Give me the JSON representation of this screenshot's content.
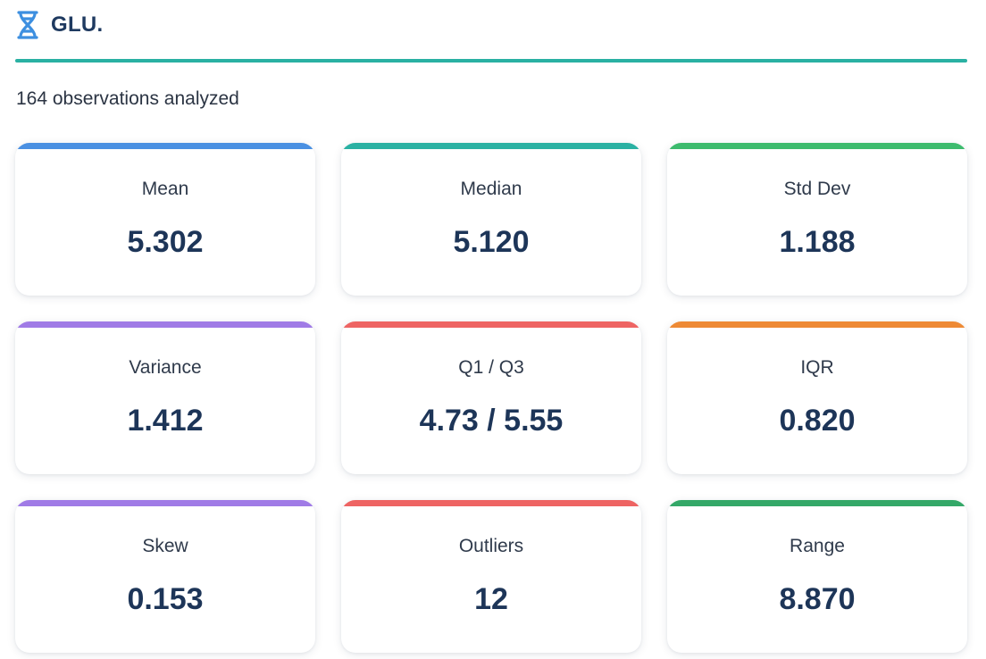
{
  "header": {
    "title": "GLU.",
    "icon": "dna-icon",
    "icon_color": "#3d8fe0"
  },
  "divider_color": "#2ab1a3",
  "summary": "164 observations analyzed",
  "stats": [
    {
      "label": "Mean",
      "value": "5.302",
      "accent": "#4a90e2"
    },
    {
      "label": "Median",
      "value": "5.120",
      "accent": "#2ab1a3"
    },
    {
      "label": "Std Dev",
      "value": "1.188",
      "accent": "#3dbb6e"
    },
    {
      "label": "Variance",
      "value": "1.412",
      "accent": "#a07be6"
    },
    {
      "label": "Q1 / Q3",
      "value": "4.73 / 5.55",
      "accent": "#ee6463"
    },
    {
      "label": "IQR",
      "value": "0.820",
      "accent": "#ee8a35"
    },
    {
      "label": "Skew",
      "value": "0.153",
      "accent": "#a07be6"
    },
    {
      "label": "Outliers",
      "value": "12",
      "accent": "#ee6463"
    },
    {
      "label": "Range",
      "value": "8.870",
      "accent": "#34a868"
    }
  ]
}
